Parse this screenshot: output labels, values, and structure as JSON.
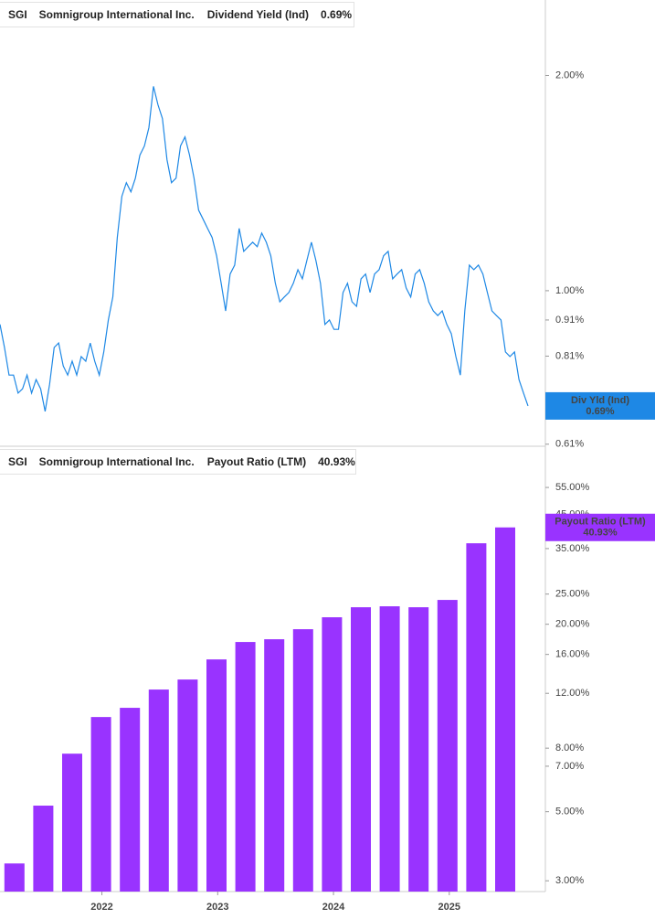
{
  "chart_data": [
    {
      "type": "line",
      "ticker": "SGI",
      "company": "Somnigroup International Inc.",
      "metric": "Dividend Yield (Ind)",
      "header_value": "0.69%",
      "tag_label": "Div Yld (Ind)",
      "tag_value": "0.69%",
      "color": "#1e88e5",
      "log_scale": true,
      "ylim": [
        0.606,
        2.55
      ],
      "yticks": [
        {
          "value": 0.61,
          "label": "0.61%"
        },
        {
          "value": 0.81,
          "label": "0.81%"
        },
        {
          "value": 0.91,
          "label": "0.91%"
        },
        {
          "value": 1,
          "label": "1.00%"
        },
        {
          "value": 2,
          "label": "2.00%"
        }
      ],
      "values": [
        0.897,
        0.833,
        0.762,
        0.762,
        0.719,
        0.729,
        0.762,
        0.719,
        0.751,
        0.729,
        0.678,
        0.74,
        0.833,
        0.845,
        0.785,
        0.762,
        0.797,
        0.762,
        0.809,
        0.797,
        0.845,
        0.797,
        0.762,
        0.821,
        0.91,
        0.98,
        1.187,
        1.355,
        1.416,
        1.375,
        1.437,
        1.547,
        1.594,
        1.691,
        1.931,
        1.82,
        1.741,
        1.525,
        1.416,
        1.437,
        1.594,
        1.641,
        1.547,
        1.437,
        1.296,
        1.259,
        1.222,
        1.187,
        1.119,
        1.024,
        0.937,
        1.055,
        1.086,
        1.222,
        1.135,
        1.152,
        1.169,
        1.152,
        1.204,
        1.169,
        1.119,
        1.024,
        0.965,
        0.98,
        0.994,
        1.024,
        1.07,
        1.039,
        1.102,
        1.169,
        1.102,
        1.024,
        0.897,
        0.91,
        0.883,
        0.883,
        0.994,
        1.024,
        0.965,
        0.951,
        1.039,
        1.055,
        0.994,
        1.055,
        1.07,
        1.119,
        1.135,
        1.039,
        1.055,
        1.07,
        1.009,
        0.98,
        1.055,
        1.07,
        1.024,
        0.965,
        0.937,
        0.923,
        0.937,
        0.897,
        0.871,
        0.809,
        0.762,
        0.937,
        1.086,
        1.07,
        1.086,
        1.055,
        0.994,
        0.937,
        0.923,
        0.91,
        0.821,
        0.809,
        0.821,
        0.751,
        0.719,
        0.69
      ]
    },
    {
      "type": "bar",
      "ticker": "SGI",
      "company": "Somnigroup International Inc.",
      "metric": "Payout Ratio (LTM)",
      "header_value": "40.93%",
      "tag_label": "Payout Ratio (LTM)",
      "tag_value": "40.93%",
      "color": "#9933ff",
      "log_scale": true,
      "ylim": [
        2.77,
        73.6
      ],
      "yticks": [
        {
          "value": 3,
          "label": "3.00%"
        },
        {
          "value": 5,
          "label": "5.00%"
        },
        {
          "value": 7,
          "label": "7.00%"
        },
        {
          "value": 8,
          "label": "8.00%"
        },
        {
          "value": 12,
          "label": "12.00%"
        },
        {
          "value": 16,
          "label": "16.00%"
        },
        {
          "value": 20,
          "label": "20.00%"
        },
        {
          "value": 25,
          "label": "25.00%"
        },
        {
          "value": 35,
          "label": "35.00%"
        },
        {
          "value": 45,
          "label": "45.00%"
        },
        {
          "value": 55,
          "label": "55.00%"
        }
      ],
      "xlim": [
        2021.12,
        2025.83
      ],
      "xticks": [
        2022,
        2023,
        2024,
        2025
      ],
      "categories": [
        null,
        null,
        null,
        null,
        null,
        null,
        null,
        null,
        null,
        null,
        null,
        null,
        null,
        null,
        null,
        null,
        null,
        null
      ],
      "values": [
        3.41,
        5.23,
        7.68,
        10.07,
        10.78,
        12.34,
        13.29,
        15.42,
        17.54,
        17.9,
        19.28,
        21.06,
        22.68,
        22.84,
        22.68,
        23.94,
        36.4,
        40.93
      ]
    }
  ]
}
